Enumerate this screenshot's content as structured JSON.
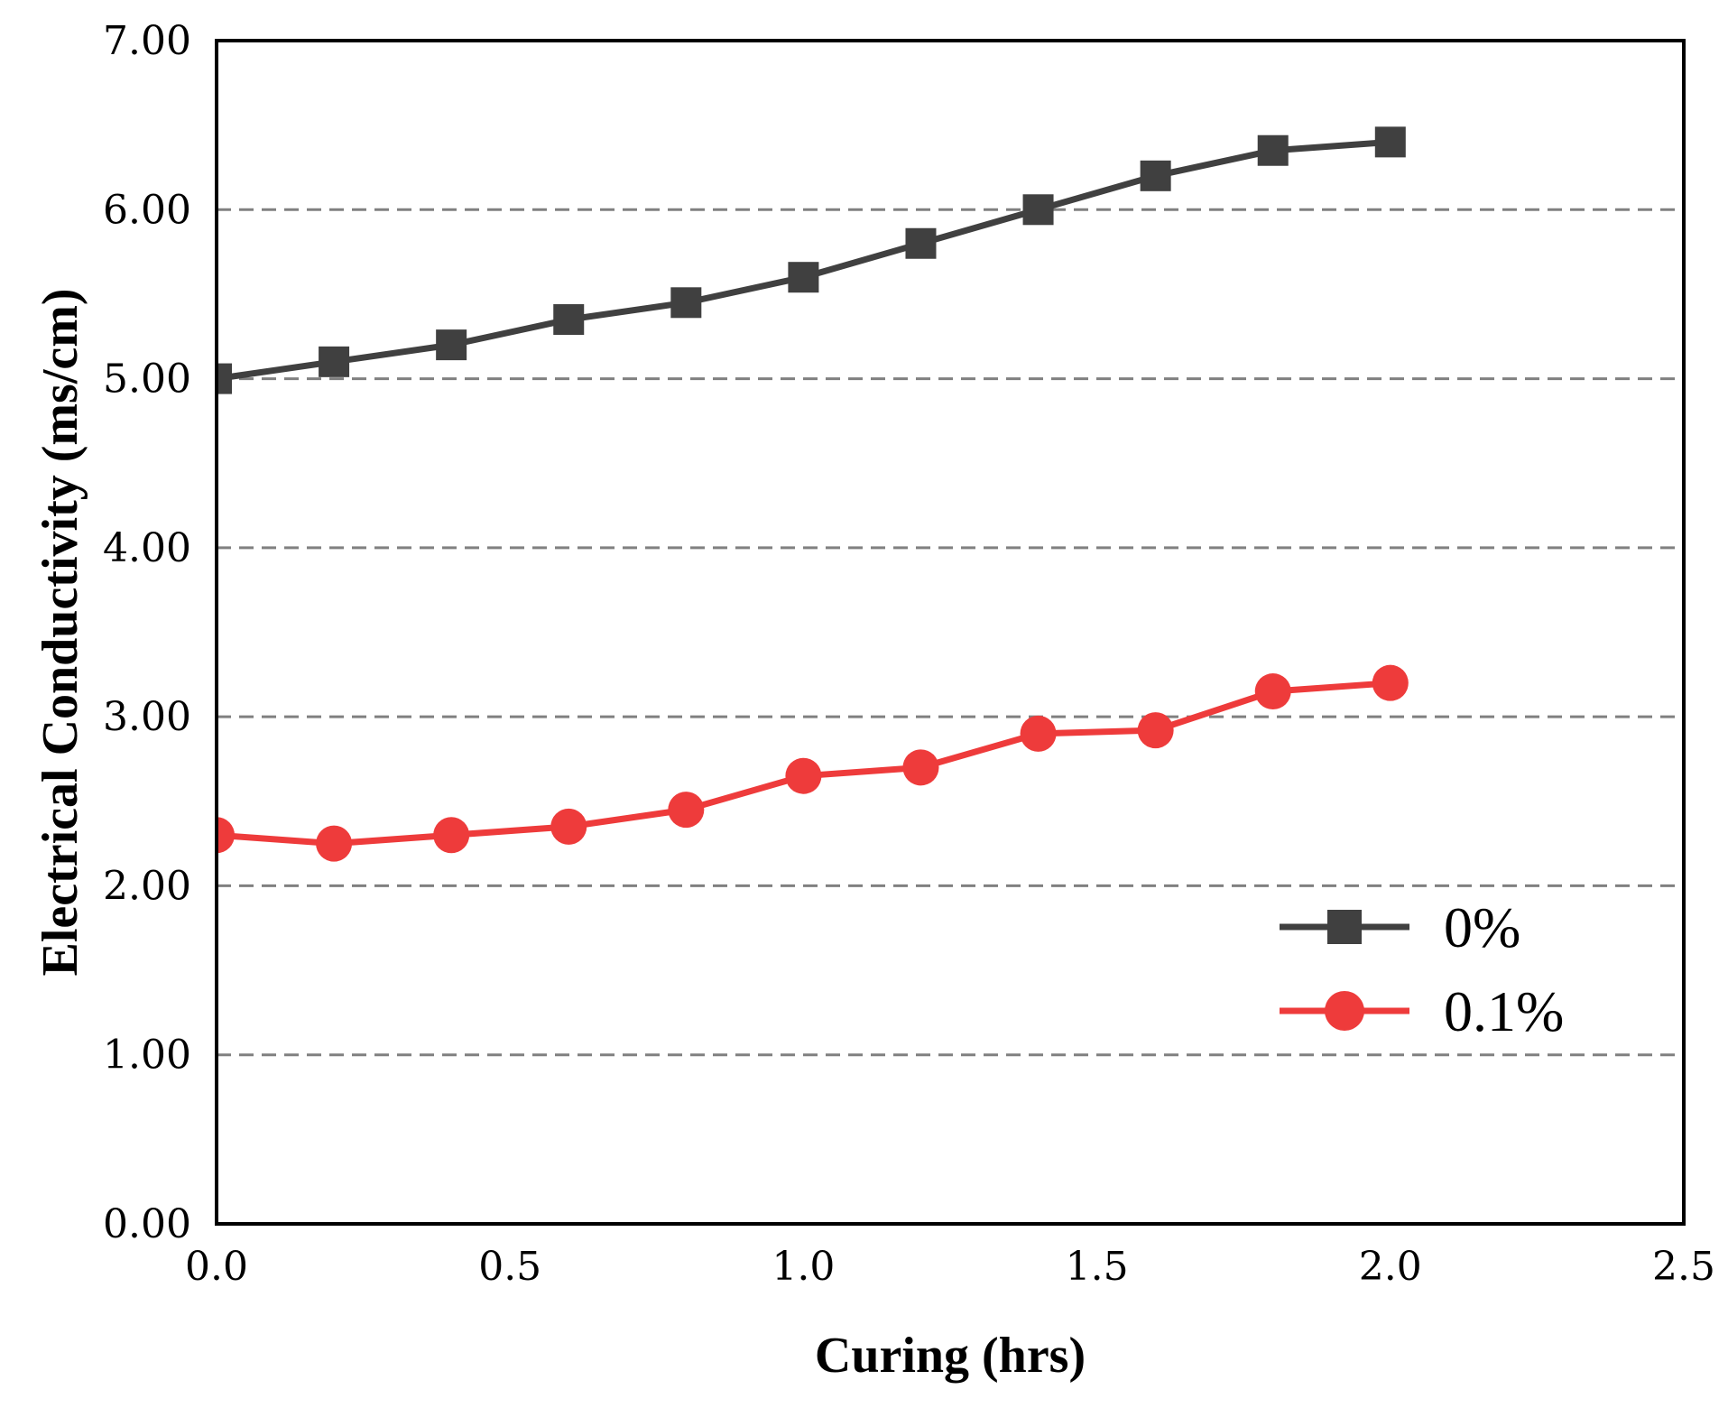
{
  "chart_data": {
    "type": "line",
    "title": "",
    "xlabel": "Curing (hrs)",
    "ylabel": "Electrical Conductivity (ms/cm)",
    "xlim": [
      0,
      2.5
    ],
    "ylim": [
      0,
      7
    ],
    "xticks": [
      0,
      0.5,
      1.0,
      1.5,
      2.0,
      2.5
    ],
    "xtick_labels": [
      "0.0",
      "0.5",
      "1.0",
      "1.5",
      "2.0",
      "2.5"
    ],
    "yticks": [
      0,
      1,
      2,
      3,
      4,
      5,
      6,
      7
    ],
    "ytick_labels": [
      "0.00",
      "1.00",
      "2.00",
      "3.00",
      "4.00",
      "5.00",
      "6.00",
      "7.00"
    ],
    "grid": "horizontal dashed",
    "legend_position": "lower-right",
    "x": [
      0,
      0.2,
      0.4,
      0.6,
      0.8,
      1.0,
      1.2,
      1.4,
      1.6,
      1.8,
      2.0
    ],
    "series": [
      {
        "name": "0%",
        "color": "#404040",
        "marker": "square",
        "values": [
          5.0,
          5.1,
          5.2,
          5.35,
          5.45,
          5.6,
          5.8,
          6.0,
          6.2,
          6.35,
          6.4
        ]
      },
      {
        "name": "0.1%",
        "color": "#ee3b3b",
        "marker": "circle",
        "values": [
          2.3,
          2.25,
          2.3,
          2.35,
          2.45,
          2.65,
          2.7,
          2.9,
          2.92,
          3.15,
          3.2
        ]
      }
    ]
  }
}
